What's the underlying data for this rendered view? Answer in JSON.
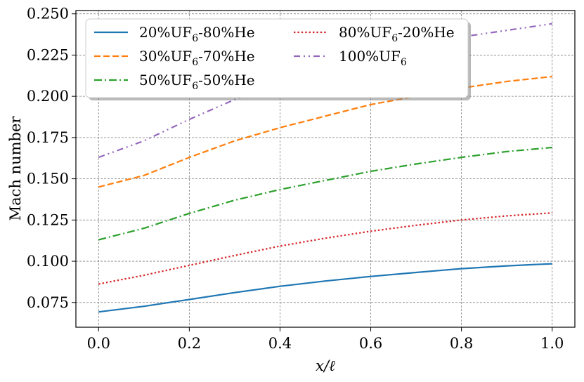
{
  "chart_data": {
    "type": "line",
    "xlabel": "x/ℓ",
    "ylabel": "Mach number",
    "xlim": [
      -0.05,
      1.05
    ],
    "ylim": [
      0.06,
      0.252
    ],
    "xticks": [
      "0.0",
      "0.2",
      "0.4",
      "0.6",
      "0.8",
      "1.0"
    ],
    "yticks": [
      "0.075",
      "0.100",
      "0.125",
      "0.150",
      "0.175",
      "0.200",
      "0.225",
      "0.250"
    ],
    "grid": true,
    "legend_position": "top-left",
    "series": [
      {
        "name": "20%UF6-80%He",
        "color": "#1f77b4",
        "style": "solid",
        "x": [
          0.0,
          0.1,
          0.2,
          0.3,
          0.4,
          0.5,
          0.6,
          0.7,
          0.8,
          0.9,
          1.0
        ],
        "y": [
          0.0693,
          0.0727,
          0.0768,
          0.081,
          0.0848,
          0.088,
          0.0908,
          0.0932,
          0.0955,
          0.0972,
          0.0985
        ]
      },
      {
        "name": "30%UF6-70%He",
        "color": "#ff7f0e",
        "style": "dashed",
        "x": [
          0.0,
          0.1,
          0.2,
          0.3,
          0.4,
          0.5,
          0.6,
          0.7,
          0.8,
          0.9,
          1.0
        ],
        "y": [
          0.145,
          0.152,
          0.163,
          0.173,
          0.181,
          0.188,
          0.195,
          0.2,
          0.205,
          0.209,
          0.212
        ]
      },
      {
        "name": "50%UF6-50%He",
        "color": "#2ca02c",
        "style": "dashdot",
        "x": [
          0.0,
          0.1,
          0.2,
          0.3,
          0.4,
          0.5,
          0.6,
          0.7,
          0.8,
          0.9,
          1.0
        ],
        "y": [
          0.113,
          0.12,
          0.129,
          0.137,
          0.1435,
          0.149,
          0.1545,
          0.159,
          0.163,
          0.1665,
          0.169
        ]
      },
      {
        "name": "80%UF6-20%He",
        "color": "#d62728",
        "style": "dotted",
        "x": [
          0.0,
          0.1,
          0.2,
          0.3,
          0.4,
          0.5,
          0.6,
          0.7,
          0.8,
          0.9,
          1.0
        ],
        "y": [
          0.0862,
          0.0915,
          0.0975,
          0.1035,
          0.1092,
          0.114,
          0.1182,
          0.1218,
          0.125,
          0.1275,
          0.1293
        ]
      },
      {
        "name": "100%UF6",
        "color": "#9467bd",
        "style": "dashdotdot",
        "x": [
          0.0,
          0.1,
          0.2,
          0.3,
          0.4,
          0.5,
          0.6,
          0.7,
          0.8,
          0.9,
          1.0
        ],
        "y": [
          0.163,
          0.173,
          0.186,
          0.198,
          0.208,
          0.217,
          0.225,
          0.231,
          0.236,
          0.24,
          0.244
        ]
      }
    ]
  }
}
